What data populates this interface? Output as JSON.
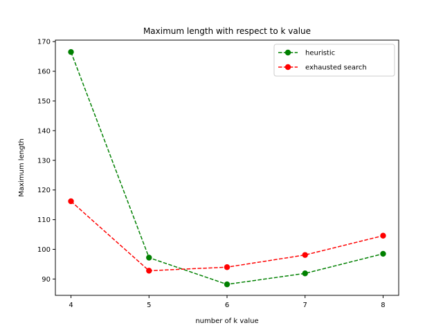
{
  "chart_data": {
    "type": "line",
    "title": "Maximum length with respect to k value",
    "xlabel": "number of k value",
    "ylabel": "Maximum length",
    "x": [
      4,
      5,
      6,
      7,
      8
    ],
    "xticks": [
      4,
      5,
      6,
      7,
      8
    ],
    "yticks": [
      90,
      100,
      110,
      120,
      130,
      140,
      150,
      160,
      170
    ],
    "xlim": [
      3.8,
      8.2
    ],
    "ylim": [
      84.5,
      170.5
    ],
    "grid": false,
    "legend_position": "top-right",
    "series": [
      {
        "name": "heuristic",
        "color": "#008000",
        "linestyle": "dashed",
        "marker": "circle",
        "values": [
          166.5,
          97.2,
          88.2,
          91.9,
          98.5
        ]
      },
      {
        "name": "exhausted search",
        "color": "#ff0000",
        "linestyle": "dashed",
        "marker": "circle",
        "values": [
          116.2,
          92.8,
          94.0,
          98.1,
          104.6
        ]
      }
    ]
  }
}
